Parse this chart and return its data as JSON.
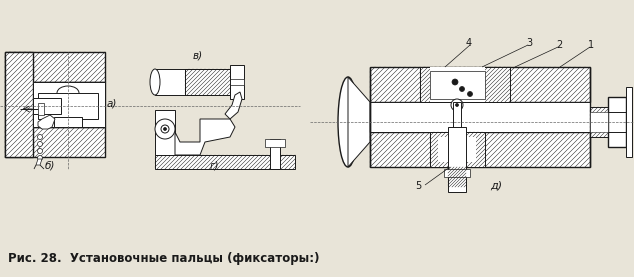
{
  "title": "Рис. 28.  Установочные пальцы (фиксаторы:)",
  "title_fontsize": 8.5,
  "bg_color": "#e8e4d8",
  "line_color": "#1a1a1a",
  "label_a": "а)",
  "label_b": "б)",
  "label_v": "в)",
  "label_g": "г)",
  "label_d": "д)",
  "fig_width": 6.34,
  "fig_height": 2.77,
  "dpi": 100
}
